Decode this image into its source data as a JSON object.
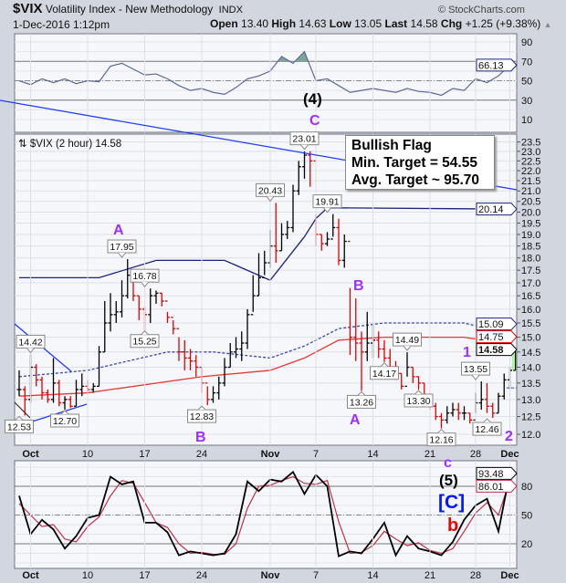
{
  "header": {
    "symbol": "$VIX",
    "name": "Volatility Index - New Methodology",
    "exchange": "INDX",
    "copyright": "© StockCharts.com",
    "datetime": "1-Dec-2016 1:12pm",
    "open_label": "Open",
    "open": "13.40",
    "high_label": "High",
    "high": "14.63",
    "low_label": "Low",
    "low": "13.05",
    "last_label": "Last",
    "last": "14.58",
    "chg_label": "Chg",
    "chg": "+1.25 (+9.38%)",
    "chg_arrow": "▲"
  },
  "main_legend": "⇅ $VIX (2 hour) 14.58",
  "flag_box": [
    "Bullish Flag",
    "Min. Target = 54.55",
    "Avg. Target ~ 95.70"
  ],
  "waves": {
    "main_A1": "A",
    "main_B1": "B",
    "main_C": "C",
    "four": "(4)",
    "main_B2": "B",
    "main_A2": "A",
    "one": "1",
    "two": "2",
    "c_small": "c",
    "five": "(5)",
    "bigC": "[C]",
    "b_small": "b"
  },
  "colors": {
    "up_bar": "#000000",
    "down_bar": "#e00000",
    "upper_band": "#1a237e",
    "middle_band": "#3949ab",
    "red_ma": "#e53935",
    "trendline": "#1e3cff",
    "wave_purple": "#9b30ff",
    "wave_blue": "#0018ff",
    "wave_red": "#ee0000",
    "overbought_fill": "#7aa898"
  },
  "chart_data": [
    {
      "type": "ohlc",
      "title": "$VIX (2 hour)",
      "y_scale": "log",
      "ylim": [
        12.0,
        23.5
      ],
      "y_ticks": [
        "12.0",
        "12.5",
        "13.0",
        "13.5",
        "14.0",
        "14.5",
        "15.0",
        "15.5",
        "16.0",
        "16.5",
        "17.0",
        "17.5",
        "18.0",
        "18.5",
        "19.0",
        "19.5",
        "20.0",
        "20.5",
        "21.0",
        "21.5",
        "22.0",
        "22.5",
        "23.0",
        "23.5"
      ],
      "x_ticks": [
        [
          "Oct",
          "Oct 3"
        ],
        [
          "10",
          "Oct 10"
        ],
        [
          "17",
          "Oct 17"
        ],
        [
          "24",
          "Oct 24"
        ],
        [
          "Nov",
          "Nov 1"
        ],
        [
          "7",
          "Nov 7"
        ],
        [
          "14",
          "Nov 14"
        ],
        [
          "21",
          "Nov 21"
        ],
        [
          "28",
          "Nov 28"
        ],
        [
          "Dec",
          "Dec 1"
        ]
      ],
      "grid": true,
      "days": [
        "Sep 30",
        "Oct 3",
        "Oct 4",
        "Oct 5",
        "Oct 6",
        "Oct 7",
        "Oct 10",
        "Oct 11",
        "Oct 12",
        "Oct 13",
        "Oct 14",
        "Oct 17",
        "Oct 18",
        "Oct 19",
        "Oct 20",
        "Oct 21",
        "Oct 24",
        "Oct 25",
        "Oct 26",
        "Oct 27",
        "Oct 28",
        "Oct 31",
        "Nov 1",
        "Nov 2",
        "Nov 3",
        "Nov 4",
        "Nov 7",
        "Nov 8",
        "Nov 9",
        "Nov 10",
        "Nov 11",
        "Nov 14",
        "Nov 15",
        "Nov 16",
        "Nov 17",
        "Nov 18",
        "Nov 21",
        "Nov 22",
        "Nov 23",
        "Nov 25",
        "Nov 28",
        "Nov 29",
        "Nov 30",
        "Dec 1"
      ],
      "bars_hlc": [
        [
          13.9,
          13.1,
          13.3
        ],
        [
          13.4,
          12.53,
          13.0
        ],
        [
          14.42,
          12.9,
          14.0
        ],
        [
          14.1,
          13.4,
          13.6
        ],
        [
          13.7,
          13.0,
          13.2
        ],
        [
          13.3,
          12.9,
          13.0
        ],
        [
          14.3,
          12.9,
          13.5
        ],
        [
          13.6,
          12.8,
          12.9
        ],
        [
          13.1,
          12.7,
          13.0
        ],
        [
          13.1,
          12.75,
          12.8
        ],
        [
          13.6,
          12.8,
          13.3
        ],
        [
          13.8,
          13.1,
          13.4
        ],
        [
          13.6,
          13.2,
          13.3
        ],
        [
          13.5,
          13.2,
          13.4
        ],
        [
          14.7,
          13.4,
          14.5
        ],
        [
          16.3,
          14.5,
          15.5
        ],
        [
          16.6,
          15.2,
          15.8
        ],
        [
          16.3,
          15.5,
          15.9
        ],
        [
          17.1,
          15.7,
          16.5
        ],
        [
          17.95,
          16.4,
          17.3
        ],
        [
          17.3,
          16.3,
          16.5
        ],
        [
          16.5,
          15.6,
          16.0
        ],
        [
          16.1,
          15.25,
          15.8
        ],
        [
          16.78,
          15.5,
          16.5
        ],
        [
          16.7,
          16.2,
          16.6
        ],
        [
          16.6,
          16.1,
          16.3
        ],
        [
          15.9,
          15.5,
          15.7
        ],
        [
          15.6,
          15.1,
          15.3
        ],
        [
          15.0,
          14.2,
          14.5
        ],
        [
          14.9,
          13.9,
          14.3
        ],
        [
          14.6,
          13.9,
          14.2
        ],
        [
          14.4,
          13.7,
          14.0
        ],
        [
          14.0,
          13.2,
          13.5
        ],
        [
          13.4,
          12.83,
          13.0
        ],
        [
          13.4,
          12.9,
          13.2
        ],
        [
          13.7,
          13.0,
          13.5
        ],
        [
          14.3,
          13.4,
          14.0
        ],
        [
          14.8,
          14.0,
          14.5
        ],
        [
          15.0,
          14.3,
          14.6
        ],
        [
          15.2,
          14.2,
          14.8
        ],
        [
          16.0,
          14.6,
          15.8
        ],
        [
          17.3,
          15.9,
          16.5
        ],
        [
          18.2,
          16.5,
          17.2
        ],
        [
          18.3,
          17.3,
          17.8
        ],
        [
          19.2,
          17.6,
          18.5
        ],
        [
          20.43,
          17.8,
          18.3
        ],
        [
          19.5,
          18.3,
          19.0
        ],
        [
          19.6,
          18.8,
          19.3
        ],
        [
          21.3,
          19.1,
          21.0
        ],
        [
          22.5,
          20.8,
          22.2
        ],
        [
          23.0,
          21.6,
          22.8
        ],
        [
          23.01,
          21.2,
          22.5
        ],
        [
          19.9,
          18.5,
          19.0
        ],
        [
          19.0,
          18.3,
          18.6
        ],
        [
          19.1,
          18.5,
          18.8
        ],
        [
          19.91,
          18.9,
          19.3
        ],
        [
          19.7,
          17.7,
          17.9
        ],
        [
          19.0,
          17.6,
          18.7
        ],
        [
          16.8,
          14.4,
          15.0
        ],
        [
          16.4,
          14.2,
          14.8
        ],
        [
          15.2,
          13.26,
          14.5
        ],
        [
          15.9,
          14.2,
          14.8
        ],
        [
          15.5,
          14.3,
          14.9
        ],
        [
          15.2,
          14.3,
          14.6
        ],
        [
          14.9,
          14.17,
          14.3
        ],
        [
          14.6,
          13.9,
          14.0
        ],
        [
          14.2,
          13.6,
          13.8
        ],
        [
          13.8,
          13.3,
          13.4
        ],
        [
          14.49,
          13.7,
          14.0
        ],
        [
          14.0,
          13.5,
          13.7
        ],
        [
          13.7,
          13.3,
          13.5
        ],
        [
          13.5,
          12.9,
          13.0
        ],
        [
          13.1,
          12.7,
          12.8
        ],
        [
          12.9,
          12.4,
          12.5
        ],
        [
          12.6,
          12.16,
          12.4
        ],
        [
          12.8,
          12.3,
          12.6
        ],
        [
          12.9,
          12.5,
          12.7
        ],
        [
          12.9,
          12.4,
          12.6
        ],
        [
          12.8,
          12.4,
          12.6
        ],
        [
          12.6,
          12.3,
          12.4
        ],
        [
          13.2,
          12.6,
          12.9
        ],
        [
          13.55,
          12.7,
          13.0
        ],
        [
          13.5,
          12.6,
          12.8
        ],
        [
          12.9,
          12.46,
          12.6
        ],
        [
          13.2,
          12.6,
          13.1
        ],
        [
          13.8,
          13.0,
          13.6
        ],
        [
          14.0,
          13.3,
          13.9
        ],
        [
          14.63,
          13.9,
          14.58
        ]
      ],
      "upper_band": [
        [
          "Sep 30",
          17.2
        ],
        [
          "Oct 11",
          17.2
        ],
        [
          "Oct 18",
          17.9
        ],
        [
          "Oct 26",
          17.9
        ],
        [
          "Nov 1",
          17.1
        ],
        [
          "Nov 4",
          18.9
        ],
        [
          "Nov 7",
          19.7
        ],
        [
          "Nov 8",
          20.2
        ],
        [
          "Dec 1",
          20.14
        ]
      ],
      "middle_band": [
        [
          "Sep 30",
          13.7
        ],
        [
          "Oct 10",
          13.9
        ],
        [
          "Oct 19",
          14.5
        ],
        [
          "Oct 25",
          14.5
        ],
        [
          "Nov 1",
          14.3
        ],
        [
          "Nov 4",
          14.7
        ],
        [
          "Nov 9",
          15.3
        ],
        [
          "Nov 15",
          15.5
        ],
        [
          "Nov 25",
          15.5
        ],
        [
          "Nov 29",
          15.3
        ],
        [
          "Dec 1",
          15.09
        ]
      ],
      "red_ma": [
        [
          "Sep 30",
          13.1
        ],
        [
          "Oct 10",
          13.2
        ],
        [
          "Oct 24",
          13.7
        ],
        [
          "Nov 1",
          13.9
        ],
        [
          "Nov 4",
          14.3
        ],
        [
          "Nov 9",
          14.9
        ],
        [
          "Nov 15",
          15.0
        ],
        [
          "Nov 25",
          15.0
        ],
        [
          "Dec 1",
          14.75
        ]
      ],
      "support_level": 13.35,
      "last_values": [
        [
          "20.14",
          "#1a237e"
        ],
        [
          "15.09",
          "#1a237e"
        ],
        [
          "14.75",
          "#e00000"
        ],
        [
          "14.58",
          "#000000"
        ]
      ],
      "price_labels": [
        [
          "14.42",
          "Oct 3",
          "above"
        ],
        [
          "12.53",
          "Sep 30",
          "below"
        ],
        [
          "12.70",
          "Oct 6",
          "below"
        ],
        [
          "17.95",
          "Oct 13",
          "above"
        ],
        [
          "16.78",
          "Oct 17",
          "above"
        ],
        [
          "15.25",
          "Oct 17",
          "below"
        ],
        [
          "12.83",
          "Oct 24",
          "below"
        ],
        [
          "20.43",
          "Nov 1",
          "above"
        ],
        [
          "23.01",
          "Nov 4",
          "above"
        ],
        [
          "19.91",
          "Nov 8",
          "above"
        ],
        [
          "13.26",
          "Nov 11",
          "below"
        ],
        [
          "14.17",
          "Nov 15",
          "below"
        ],
        [
          "14.49",
          "Nov 17",
          "above"
        ],
        [
          "13.30",
          "Nov 18",
          "below"
        ],
        [
          "12.16",
          "Nov 22",
          "below"
        ],
        [
          "13.55",
          "Nov 28",
          "above"
        ],
        [
          "12.46",
          "Nov 29",
          "below"
        ]
      ]
    },
    {
      "type": "line",
      "y_ticks": [
        "10",
        "30",
        "50",
        "70",
        "90"
      ],
      "levels": [
        30,
        70
      ],
      "center": 50,
      "values": [
        50,
        46,
        52,
        48,
        52,
        47,
        50,
        49,
        65,
        68,
        62,
        56,
        57,
        52,
        45,
        40,
        42,
        38,
        36,
        43,
        52,
        55,
        60,
        75,
        68,
        80,
        50,
        52,
        45,
        38,
        40,
        42,
        40,
        38,
        42,
        39,
        38,
        35,
        42,
        40,
        52,
        48,
        55,
        66.13
      ],
      "last_value": "66.13"
    },
    {
      "type": "line",
      "y_ticks": [
        "20",
        "50",
        "80"
      ],
      "levels": [
        20,
        80
      ],
      "center": 50,
      "series": [
        {
          "values": [
            70,
            30,
            45,
            35,
            15,
            28,
            47,
            50,
            90,
            82,
            85,
            42,
            42,
            32,
            8,
            12,
            10,
            8,
            10,
            30,
            85,
            75,
            87,
            85,
            95,
            72,
            92,
            80,
            7,
            12,
            10,
            25,
            42,
            8,
            28,
            15,
            12,
            8,
            22,
            45,
            60,
            67,
            33,
            93.48
          ],
          "color": "#000000",
          "last": "93.48"
        },
        {
          "values": [
            62,
            50,
            38,
            40,
            25,
            22,
            38,
            48,
            70,
            86,
            83,
            63,
            42,
            37,
            20,
            10,
            11,
            9,
            9,
            20,
            57,
            80,
            81,
            86,
            90,
            83,
            82,
            86,
            43,
            10,
            11,
            18,
            33,
            25,
            18,
            21,
            13,
            10,
            15,
            33,
            52,
            63,
            50,
            86.01
          ],
          "color": "#c0304a",
          "last": "86.01"
        }
      ]
    }
  ]
}
